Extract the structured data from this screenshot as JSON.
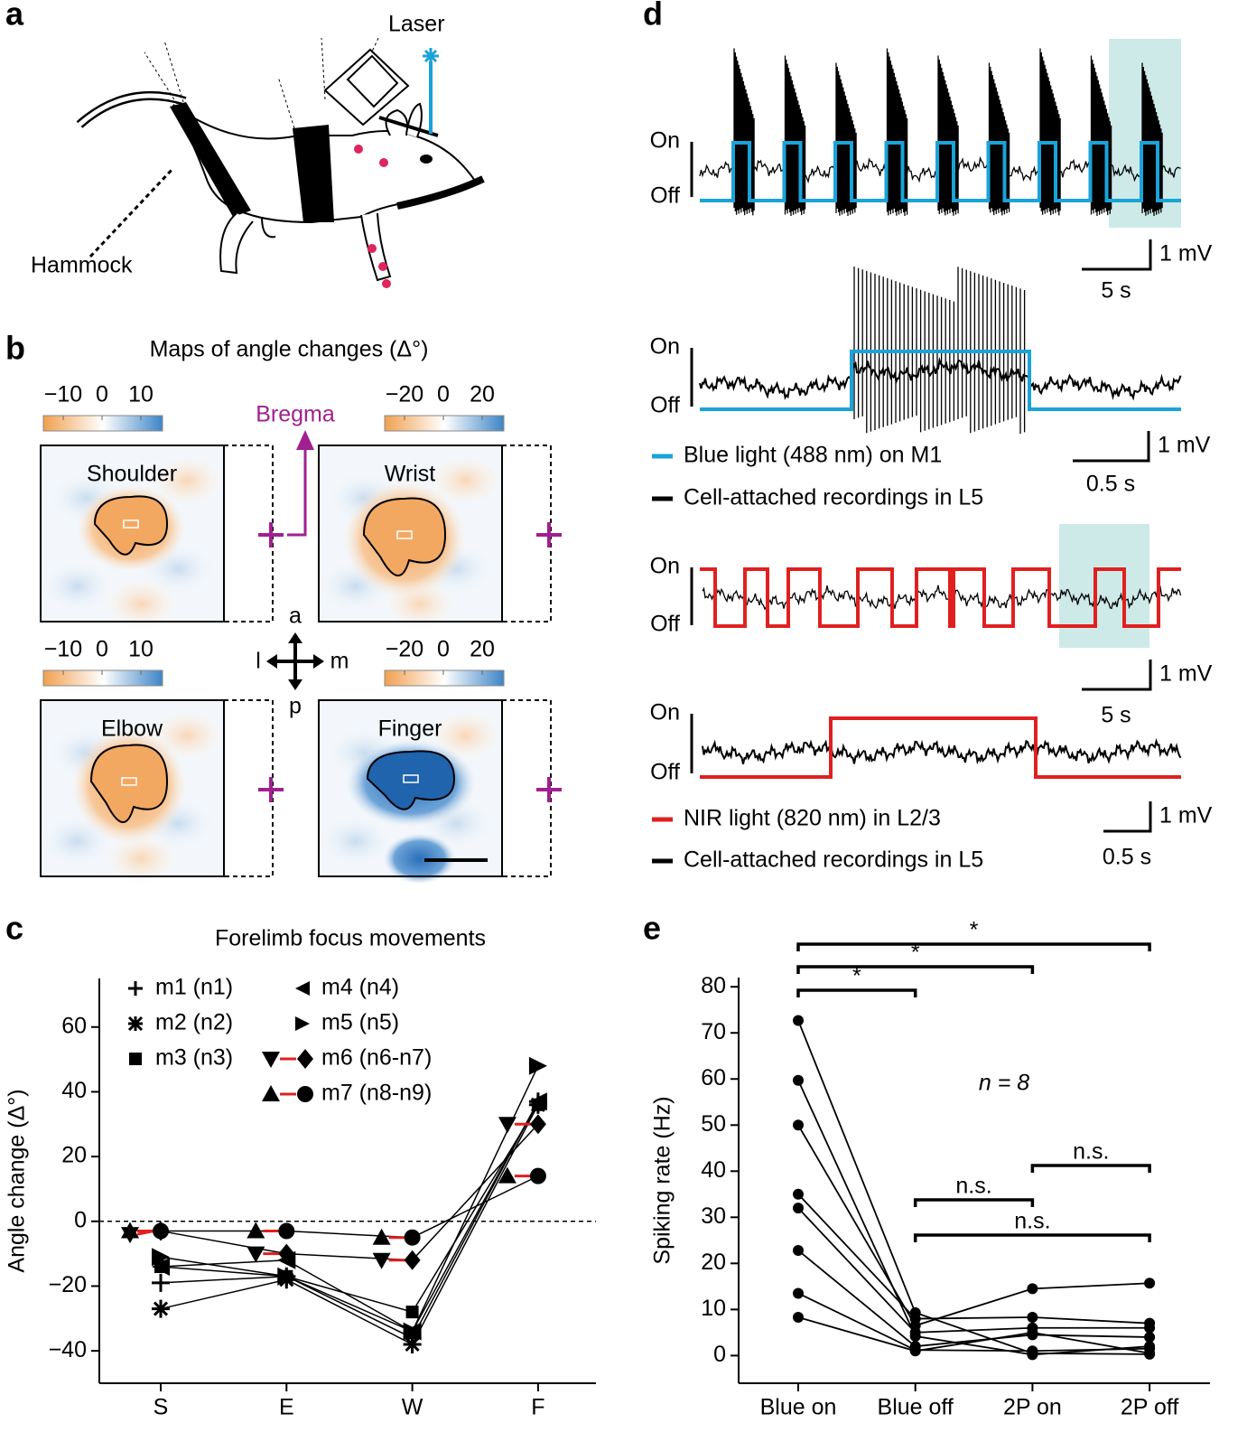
{
  "panel_labels": [
    "a",
    "b",
    "c",
    "d",
    "e"
  ],
  "panel_a": {
    "laser": "Laser",
    "hammock": "Hammock"
  },
  "panel_b": {
    "title": "Maps of angle changes (Δ°)",
    "bregma": "Bregma",
    "maps": [
      {
        "label": "Shoulder",
        "colorbar": [
          "−10",
          "0",
          "10"
        ]
      },
      {
        "label": "Wrist",
        "colorbar": [
          "−20",
          "0",
          "20"
        ]
      },
      {
        "label": "Elbow",
        "colorbar": [
          "−10",
          "0",
          "10"
        ]
      },
      {
        "label": "Finger",
        "colorbar": [
          "−20",
          "0",
          "20"
        ]
      }
    ],
    "compass": {
      "a": "a",
      "p": "p",
      "l": "l",
      "m": "m"
    }
  },
  "panel_d": {
    "on": "On",
    "off": "Off",
    "scale_bars": [
      {
        "v": "1 mV",
        "h": "5 s"
      },
      {
        "v": "1 mV",
        "h": "0.5 s"
      },
      {
        "v": "1 mV",
        "h": "5 s"
      },
      {
        "v": "1 mV",
        "h": "0.5 s"
      }
    ],
    "legend_blue": [
      "Blue light (488 nm) on M1",
      "Cell-attached recordings in L5"
    ],
    "legend_nir": [
      "NIR light (820 nm) in L2/3",
      "Cell-attached recordings in L5"
    ]
  },
  "chart_data": [
    {
      "type": "line",
      "title": "Forelimb focus movements",
      "y_label": "Angle change (Δ°)",
      "categories": [
        "S",
        "E",
        "W",
        "F"
      ],
      "ylim": [
        -50,
        75
      ],
      "yticks": [
        {
          "value": -40,
          "label": "−40"
        },
        {
          "value": -20,
          "label": "−20"
        },
        0,
        20,
        40,
        60
      ],
      "zero_line": true,
      "series": [
        {
          "name": "m1 (n1)",
          "marker": "plus",
          "values": [
            -19,
            -17,
            -36,
            37
          ]
        },
        {
          "name": "m2 (n2)",
          "marker": "asterisk",
          "values": [
            -27,
            -18,
            -38,
            36
          ]
        },
        {
          "name": "m3 (n3)",
          "marker": "square",
          "values": [
            -14,
            -17,
            -28,
            36
          ]
        },
        {
          "name": "m4 (n4)",
          "marker": "tri-left",
          "values": [
            -14,
            -12,
            -34,
            37
          ]
        },
        {
          "name": "m5 (n5)",
          "marker": "tri-right",
          "values": [
            -11,
            -17,
            -34,
            48
          ]
        },
        {
          "name": "m6 (n6-n7)",
          "marker": "tri-down",
          "pair_marker": "diamond",
          "values": [
            -4,
            -10,
            -12,
            30
          ],
          "pair_values": [
            -3,
            -10,
            -12,
            30
          ]
        },
        {
          "name": "m7 (n8-n9)",
          "marker": "tri-up",
          "pair_marker": "circle",
          "values": [
            -3,
            -3,
            -5,
            14
          ],
          "pair_values": [
            -3,
            -3,
            -5,
            14
          ]
        }
      ]
    },
    {
      "type": "line",
      "y_label": "Spiking rate (Hz)",
      "annotation": "n = 8",
      "categories": [
        "Blue on",
        "Blue off",
        "2P on",
        "2P off"
      ],
      "ylim": [
        -6,
        82
      ],
      "yticks": [
        0,
        10,
        20,
        30,
        40,
        50,
        60,
        70,
        80
      ],
      "series": [
        {
          "values": [
            72.7,
            9.3,
            0.5,
            0.3
          ]
        },
        {
          "values": [
            59.7,
            4.2,
            0.2,
            2
          ]
        },
        {
          "values": [
            50,
            6.5,
            14.5,
            15.7
          ]
        },
        {
          "values": [
            35,
            8,
            8.3,
            7
          ]
        },
        {
          "values": [
            32,
            5,
            6,
            6
          ]
        },
        {
          "values": [
            22.8,
            2,
            4.5,
            4
          ]
        },
        {
          "values": [
            13.5,
            1.2,
            1,
            1.5
          ]
        },
        {
          "values": [
            8.3,
            1,
            5,
            0.5
          ]
        }
      ],
      "comparisons": [
        {
          "pair": [
            0,
            1
          ],
          "label": "*"
        },
        {
          "pair": [
            0,
            2
          ],
          "label": "*"
        },
        {
          "pair": [
            0,
            3
          ],
          "label": "*"
        },
        {
          "pair": [
            2,
            3
          ],
          "label": "n.s."
        },
        {
          "pair": [
            1,
            2
          ],
          "label": "n.s."
        },
        {
          "pair": [
            1,
            3
          ],
          "label": "n.s."
        }
      ]
    }
  ]
}
